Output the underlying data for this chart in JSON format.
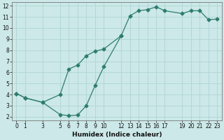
{
  "xlabel": "Humidex (Indice chaleur)",
  "bg_color": "#cce8e8",
  "grid_color": "#b0d4d4",
  "line_color": "#2e7d6e",
  "x_ticks": [
    0,
    1,
    3,
    5,
    6,
    7,
    8,
    9,
    10,
    12,
    13,
    14,
    15,
    16,
    17,
    19,
    20,
    21,
    22,
    23
  ],
  "upper_x": [
    0,
    1,
    3,
    5,
    6,
    7,
    8,
    9,
    10,
    12,
    13,
    14,
    15,
    16,
    17,
    19,
    20,
    21,
    22,
    23
  ],
  "upper_y": [
    4.1,
    3.7,
    3.3,
    4.0,
    6.3,
    6.65,
    7.5,
    7.9,
    8.1,
    9.3,
    11.1,
    11.55,
    11.65,
    11.9,
    11.55,
    11.3,
    11.55,
    11.55,
    10.75,
    10.8
  ],
  "lower_x": [
    0,
    1,
    3,
    5,
    6,
    7,
    8,
    9,
    10,
    12
  ],
  "lower_y": [
    4.1,
    3.7,
    3.3,
    2.2,
    2.1,
    2.15,
    3.0,
    4.8,
    6.5,
    9.3
  ],
  "ylim_min": 1.7,
  "ylim_max": 12.3,
  "yticks": [
    2,
    3,
    4,
    5,
    6,
    7,
    8,
    9,
    10,
    11,
    12
  ],
  "markersize": 2.5,
  "tick_fontsize": 5.5,
  "xlabel_fontsize": 6.5
}
